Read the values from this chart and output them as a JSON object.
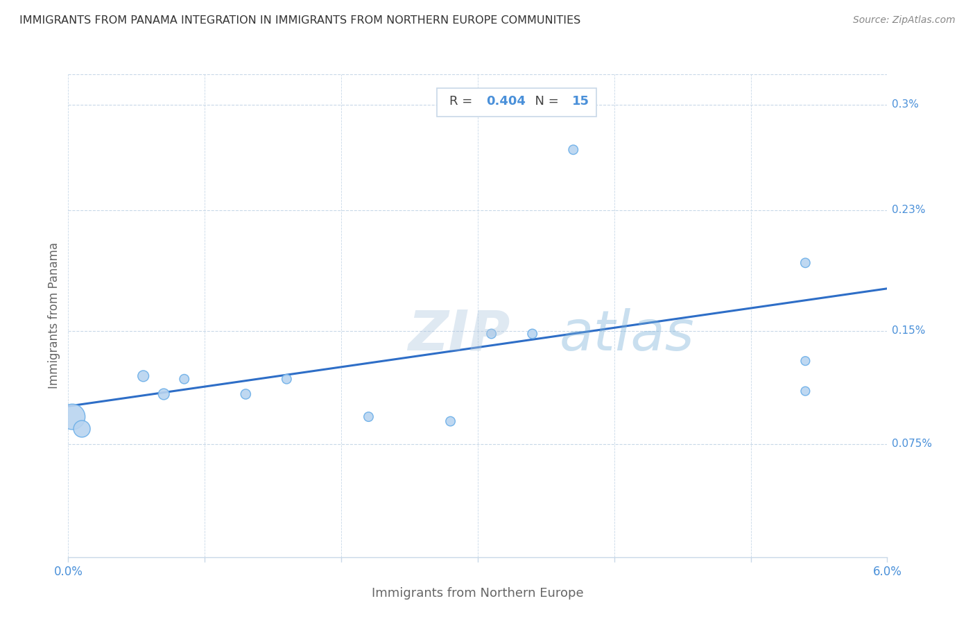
{
  "title": "IMMIGRANTS FROM PANAMA INTEGRATION IN IMMIGRANTS FROM NORTHERN EUROPE COMMUNITIES",
  "source": "Source: ZipAtlas.com",
  "xlabel": "Immigrants from Northern Europe",
  "ylabel": "Immigrants from Panama",
  "R": 0.404,
  "N": 15,
  "xlim": [
    0.0,
    0.06
  ],
  "ylim": [
    0.0,
    0.0032
  ],
  "xtick_positions": [
    0.0,
    0.01,
    0.02,
    0.03,
    0.04,
    0.05,
    0.06
  ],
  "xtick_labels": [
    "0.0%",
    "",
    "",
    "",
    "",
    "",
    "6.0%"
  ],
  "ytick_values": [
    0.00075,
    0.0015,
    0.0023,
    0.003
  ],
  "ytick_labels": [
    "0.075%",
    "0.15%",
    "0.23%",
    "0.3%"
  ],
  "scatter_x": [
    0.0003,
    0.001,
    0.0055,
    0.007,
    0.0085,
    0.013,
    0.016,
    0.022,
    0.028,
    0.031,
    0.034,
    0.037,
    0.054,
    0.054,
    0.054
  ],
  "scatter_y": [
    0.00093,
    0.00085,
    0.0012,
    0.00108,
    0.00118,
    0.00108,
    0.00118,
    0.00093,
    0.0009,
    0.00148,
    0.00148,
    0.0027,
    0.00195,
    0.0013,
    0.0011
  ],
  "scatter_sizes": [
    700,
    300,
    130,
    130,
    95,
    105,
    95,
    95,
    95,
    95,
    95,
    95,
    95,
    85,
    85
  ],
  "trend_x_start": 0.0,
  "trend_x_end": 0.06,
  "trend_y_start": 0.001,
  "trend_y_end": 0.00178,
  "watermark_zip": "ZIP",
  "watermark_atlas": "atlas",
  "dot_color": "#b8d4f0",
  "dot_edge_color": "#6aaee8",
  "line_color": "#2e6ec7",
  "grid_color": "#c8d8e8",
  "text_blue": "#4a90d9",
  "title_color": "#333333",
  "source_color": "#888888",
  "background_color": "#ffffff",
  "ylabel_color": "#666666",
  "xlabel_color": "#666666",
  "ytick_label_color": "#4a90d9",
  "xtick_label_color": "#4a90d9"
}
